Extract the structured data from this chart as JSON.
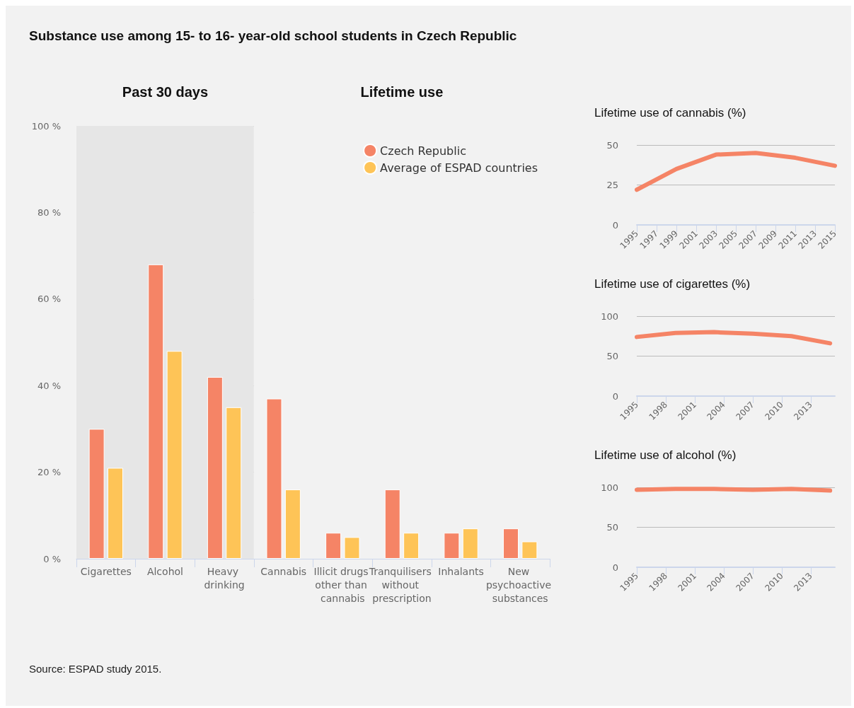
{
  "chart_data": [
    {
      "type": "bar",
      "title": "Substance use among 15- to 16- year-old school students in Czech Republic",
      "categories": [
        "Cigarettes",
        "Alcohol",
        "Heavy drinking",
        "Cannabis",
        "Illicit drugs other than cannabis",
        "Tranquilisers without prescription",
        "Inhalants",
        "New psychoactive substances"
      ],
      "series": [
        {
          "name": "Czech Republic",
          "color": "#f58466",
          "values": [
            30,
            68,
            42,
            37,
            6,
            16,
            6,
            7
          ]
        },
        {
          "name": "Average of ESPAD countries",
          "color": "#fec457",
          "values": [
            21,
            48,
            35,
            16,
            5,
            6,
            7,
            4
          ]
        }
      ],
      "ylim": [
        0,
        100
      ],
      "yticks": [
        {
          "value": 0,
          "label": "0 %"
        },
        {
          "value": 20,
          "label": "20 %"
        },
        {
          "value": 40,
          "label": "40 %"
        },
        {
          "value": 60,
          "label": "60 %"
        },
        {
          "value": 80,
          "label": "80 %"
        },
        {
          "value": 100,
          "label": "100 %"
        }
      ],
      "grid": "y",
      "legend": "top right",
      "bands": [
        {
          "axis": "x",
          "from": "Cigarettes",
          "to": "Heavy drinking",
          "label": "Past 30 days",
          "color": "#e6e6e6"
        },
        {
          "axis": "x",
          "from": "Cannabis",
          "to": "New psychoactive substances",
          "label": "Lifetime use",
          "color": "#f2f2f2"
        }
      ],
      "annotations": [
        "Source: ESPAD study 2015."
      ]
    },
    {
      "type": "line",
      "title": "Lifetime use of cannabis (%)",
      "x": [
        1995,
        1999,
        2003,
        2007,
        2011,
        2015
      ],
      "series": [
        {
          "color": "#f58466",
          "values": [
            22,
            35,
            44,
            45,
            42,
            37
          ]
        }
      ],
      "xlim": [
        1995,
        2015
      ],
      "xticks": [
        1995,
        1997,
        1999,
        2001,
        2003,
        2005,
        2007,
        2009,
        2011,
        2013,
        2015
      ],
      "ylim": [
        0,
        50
      ],
      "yticks": [
        0,
        25,
        50
      ],
      "grid": "y",
      "marker": "none",
      "line_style": "solid"
    },
    {
      "type": "line",
      "title": "Lifetime use of cigarettes (%)",
      "x": [
        1995,
        1999,
        2003,
        2007,
        2011,
        2015
      ],
      "series": [
        {
          "color": "#f58466",
          "values": [
            74,
            79,
            80,
            78,
            75,
            66
          ]
        }
      ],
      "xlim": [
        1995,
        2015.5
      ],
      "xticks": [
        1995,
        1998,
        2001,
        2004,
        2007,
        2010,
        2013
      ],
      "ylim": [
        0,
        100
      ],
      "yticks": [
        0,
        50,
        100
      ],
      "grid": "y",
      "marker": "none",
      "line_style": "solid"
    },
    {
      "type": "line",
      "title": "Lifetime use of alcohol (%)",
      "x": [
        1995,
        1999,
        2003,
        2007,
        2011,
        2015
      ],
      "series": [
        {
          "color": "#f58466",
          "values": [
            97,
            98,
            98,
            97,
            98,
            96
          ]
        }
      ],
      "xlim": [
        1995,
        2015.5
      ],
      "xticks": [
        1995,
        1998,
        2001,
        2004,
        2007,
        2010,
        2013
      ],
      "ylim": [
        0,
        100
      ],
      "yticks": [
        0,
        50,
        100
      ],
      "grid": "y",
      "marker": "none",
      "line_style": "solid"
    }
  ]
}
